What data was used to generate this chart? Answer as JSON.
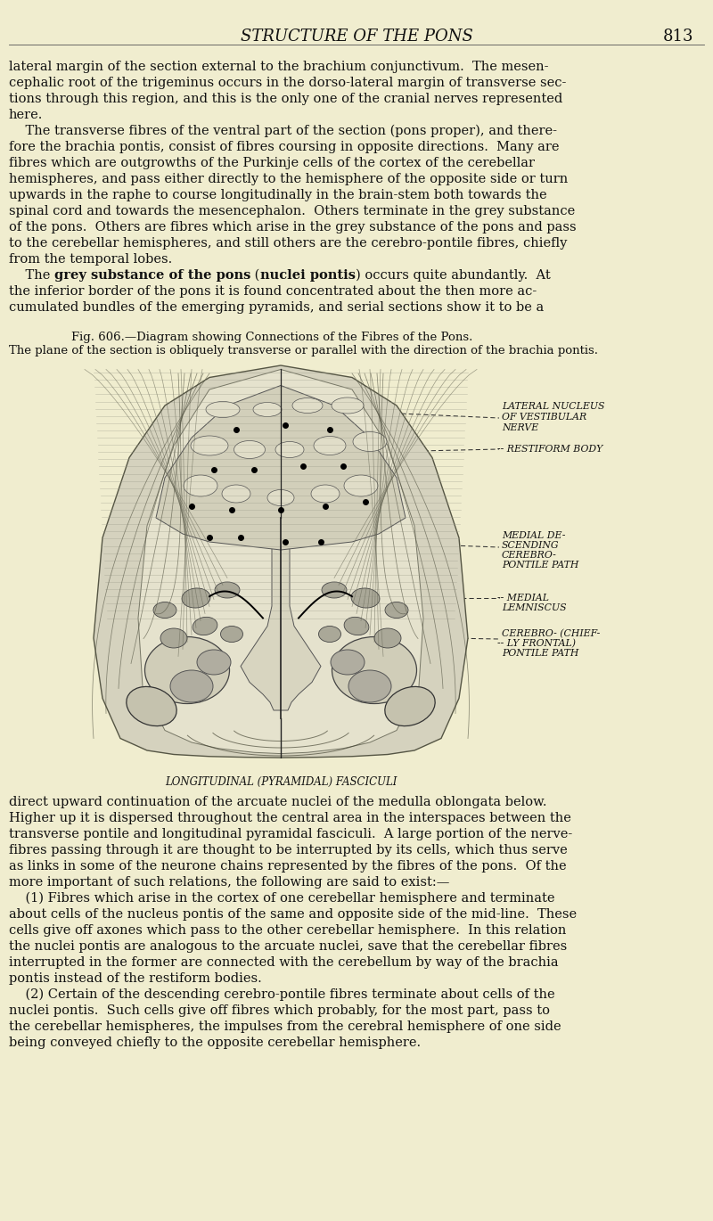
{
  "bg_color": "#f0edcf",
  "header_text": "STRUCTURE OF THE PONS",
  "page_number": "813",
  "fig_caption_title": "Fig. 606.—Diagram showing Connections of the Fibres of the Pons.",
  "fig_caption_sub": "The plane of the section is obliquely transverse or parallel with the direction of the brachia pontis.",
  "longitudinal_label": "LONGITUDINAL (PYRAMIDAL) FASCICULI",
  "top_text": [
    "lateral margin of the section external to the brachium conjunctivum.  The mesen-",
    "cephalic root of the trigeminus occurs in the dorso-lateral margin of transverse sec-",
    "tions through this region, and this is the only one of the cranial nerves represented",
    "here.",
    "    The transverse fibres of the ventral part of the section (pons proper), and there-",
    "fore the brachia pontis, consist of fibres coursing in opposite directions.  Many are",
    "fibres which are outgrowths of the Purkinje cells of the cortex of the cerebellar",
    "hemispheres, and pass either directly to the hemisphere of the opposite side or turn",
    "upwards in the raphe to course longitudinally in the brain-stem both towards the",
    "spinal cord and towards the mesencephalon.  Others terminate in the grey substance",
    "of the pons.  Others are fibres which arise in the grey substance of the pons and pass",
    "to the cerebellar hemispheres, and still others are the cerebro-pontile fibres, chiefly",
    "from the temporal lobes."
  ],
  "bold_line": "    The grey substance of the pons (nuclei pontis) occurs quite abundantly.  At",
  "bold_line2": "the inferior border of the pons it is found concentrated about the then more ac-",
  "bold_line3": "cumulated bundles of the emerging pyramids, and serial sections show it to be a",
  "bottom_text": [
    "direct upward continuation of the arcuate nuclei of the medulla oblongata below.",
    "Higher up it is dispersed throughout the central area in the interspaces between the",
    "transverse pontile and longitudinal pyramidal fasciculi.  A large portion of the nerve-",
    "fibres passing through it are thought to be interrupted by its cells, which thus serve",
    "as links in some of the neurone chains represented by the fibres of the pons.  Of the",
    "more important of such relations, the following are said to exist:—",
    "    (1) Fibres which arise in the cortex of one cerebellar hemisphere and terminate",
    "about cells of the nucleus pontis of the same and opposite side of the mid-line.  These",
    "cells give off axones which pass to the other cerebellar hemisphere.  In this relation",
    "the nuclei pontis are analogous to the arcuate nuclei, save that the cerebellar fibres",
    "interrupted in the former are connected with the cerebellum by way of the brachia",
    "pontis instead of the restiform bodies.",
    "    (2) Certain of the descending cerebro-pontile fibres terminate about cells of the",
    "nuclei pontis.  Such cells give off fibres which probably, for the most part, pass to",
    "the cerebellar hemispheres, the impulses from the cerebral hemisphere of one side",
    "being conveyed chiefly to the opposite cerebellar hemisphere."
  ]
}
